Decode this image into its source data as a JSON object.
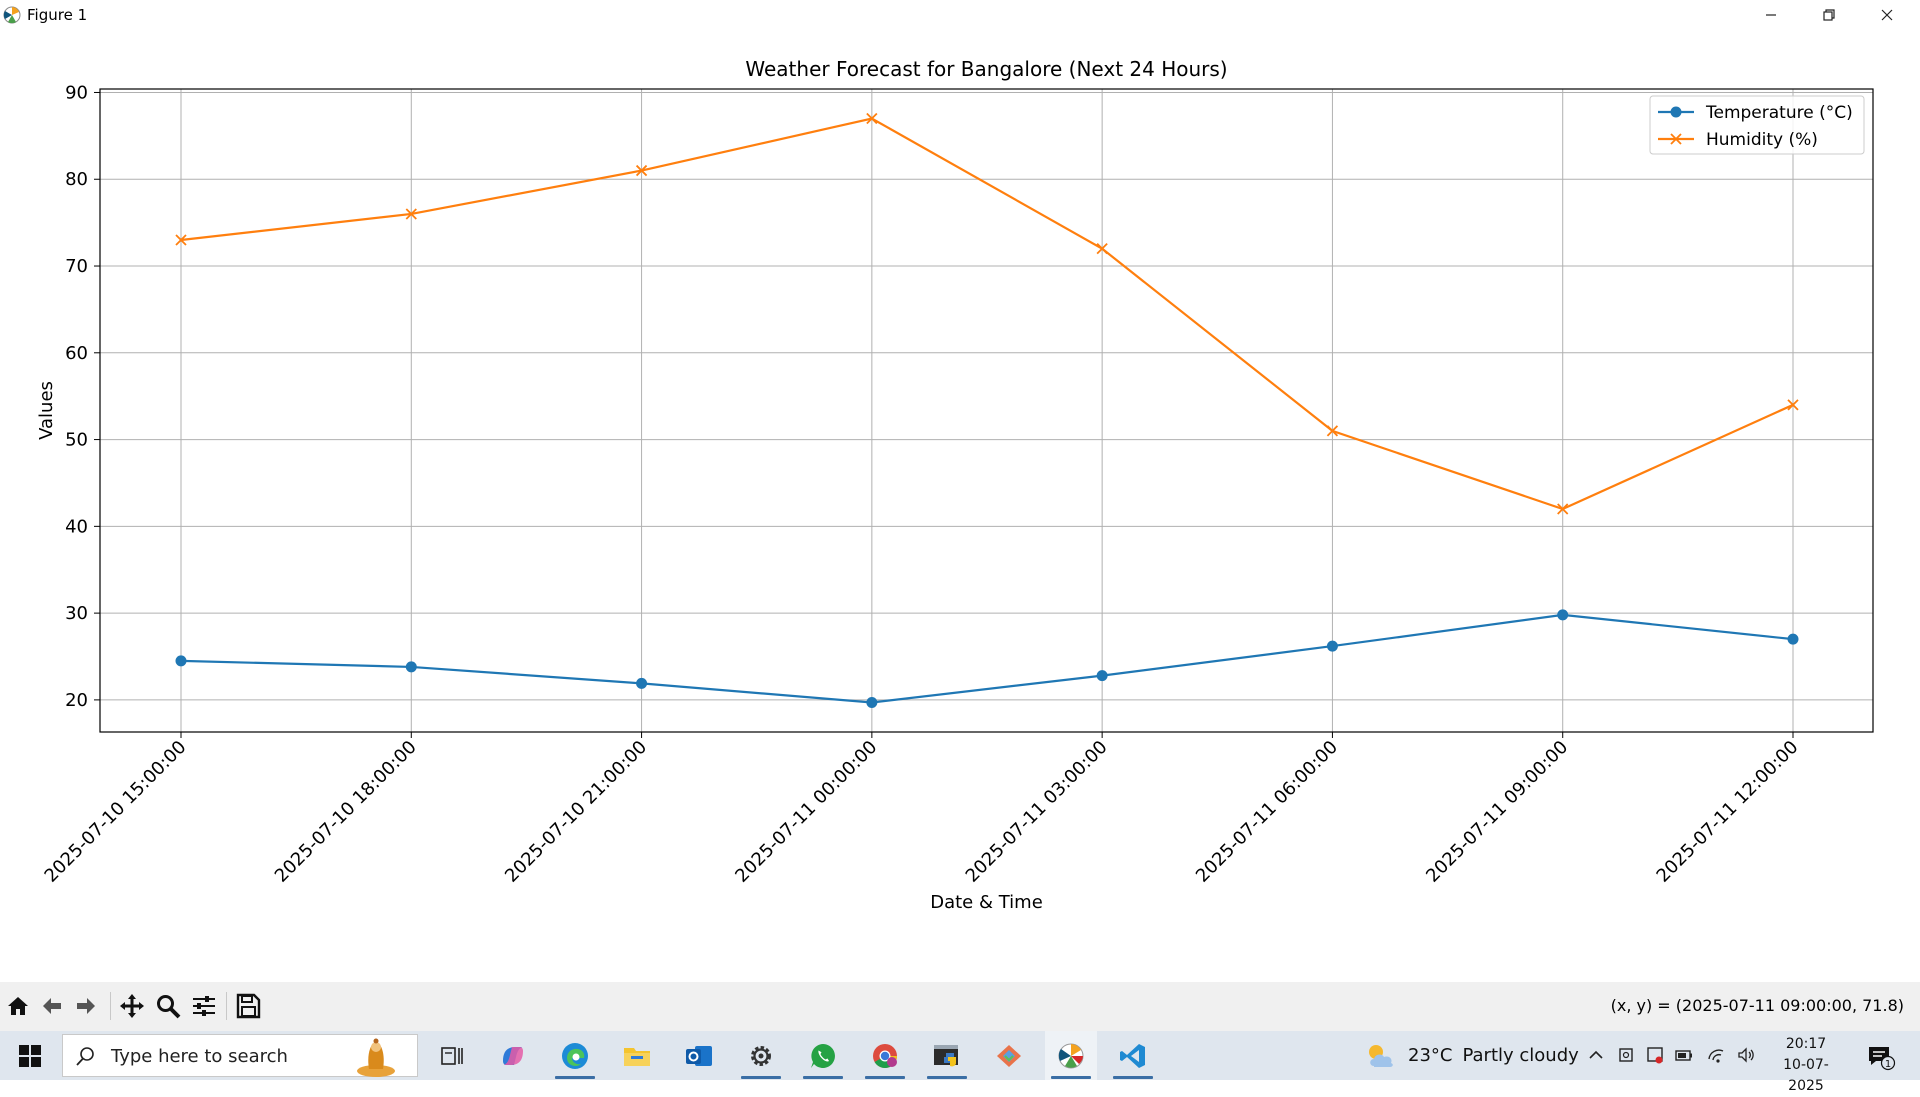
{
  "window": {
    "title": "Figure 1"
  },
  "chart_data": {
    "type": "line",
    "title": "Weather Forecast for Bangalore (Next 24 Hours)",
    "xlabel": "Date & Time",
    "ylabel": "Values",
    "ylim": [
      16.3,
      90.4
    ],
    "yticks": [
      20,
      30,
      40,
      50,
      60,
      70,
      80,
      90
    ],
    "ytick_labels": [
      "20",
      "30",
      "40",
      "50",
      "60",
      "70",
      "80",
      "90"
    ],
    "categories": [
      "2025-07-10 15:00:00",
      "2025-07-10 18:00:00",
      "2025-07-10 21:00:00",
      "2025-07-11 00:00:00",
      "2025-07-11 03:00:00",
      "2025-07-11 06:00:00",
      "2025-07-11 09:00:00",
      "2025-07-11 12:00:00"
    ],
    "series": [
      {
        "name": "Temperature (°C)",
        "color": "#1f77b4",
        "marker": "circle",
        "values": [
          24.5,
          23.8,
          21.9,
          19.7,
          22.8,
          26.2,
          29.8,
          27.0
        ]
      },
      {
        "name": "Humidity (%)",
        "color": "#ff7f0e",
        "marker": "x",
        "values": [
          73,
          76,
          81,
          87,
          72,
          51,
          42,
          54
        ]
      }
    ],
    "grid": true,
    "legend_position": "top-right"
  },
  "toolbar": {
    "buttons": [
      "home-icon",
      "back-icon",
      "forward-icon",
      "pan-icon",
      "zoom-icon",
      "configure-subplots-icon",
      "save-icon"
    ],
    "coordinates": "(x, y) = (2025-07-11 09:00:00, 71.8)"
  },
  "taskbar": {
    "search_placeholder": "Type here to search",
    "apps": [
      "task-view-icon",
      "copilot-icon",
      "edge-icon",
      "file-explorer-icon",
      "outlook-icon",
      "settings-icon",
      "whatsapp-icon",
      "chrome-icon",
      "python-icon",
      "git-icon",
      "matplotlib-figure-icon",
      "vscode-icon"
    ],
    "weather": {
      "temperature": "23°C",
      "condition": "Partly cloudy"
    },
    "clock": {
      "time": "20:17",
      "date": "10-07-2025"
    },
    "notification_count": "1"
  }
}
